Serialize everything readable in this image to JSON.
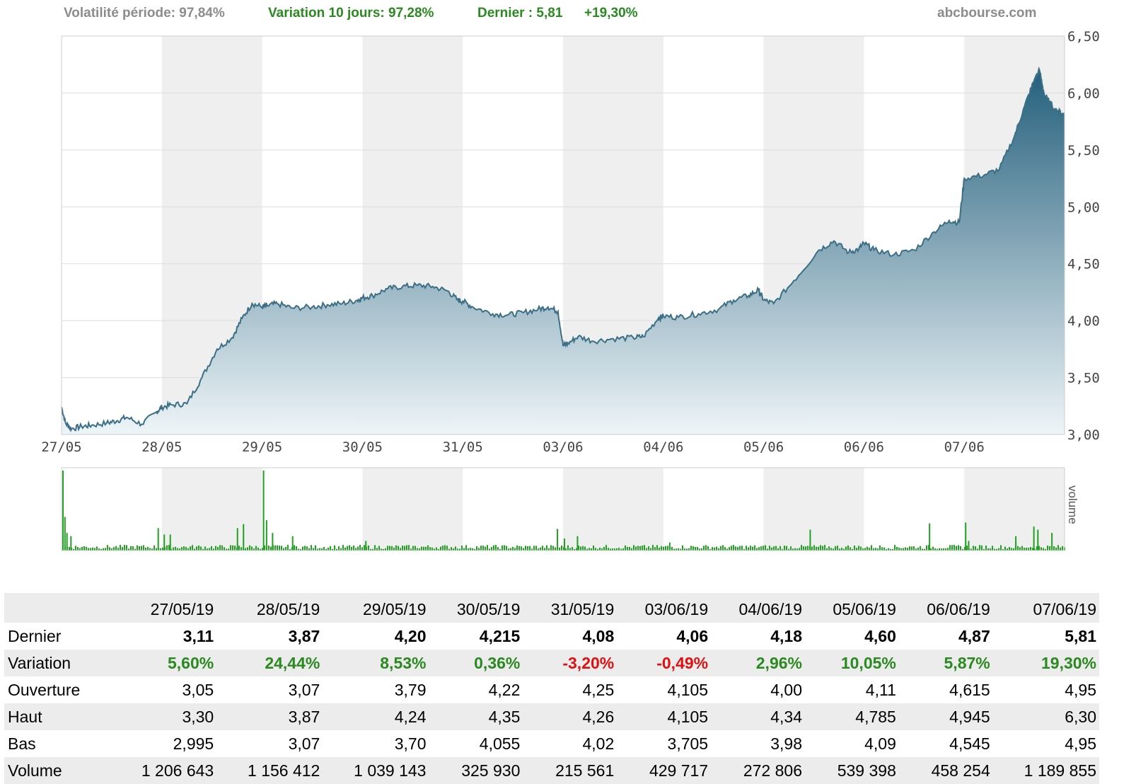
{
  "header": {
    "volatility": "Volatilité période: 97,84%",
    "variation10": "Variation 10 jours: 97,28%",
    "last": "Dernier : 5,81",
    "change": "+19,30%",
    "site": "abcbourse.com"
  },
  "colors": {
    "accent_green": "#2a8a1f",
    "header_gray": "#8c8c8c",
    "negative_red": "#e01010",
    "line": "#3b6f86",
    "volume_bar": "#22a022",
    "shade_band": "#efefef"
  },
  "chart_data": [
    {
      "type": "area",
      "title": "",
      "x_ticks": [
        "27/05",
        "28/05",
        "29/05",
        "30/05",
        "31/05",
        "03/06",
        "04/06",
        "05/06",
        "06/06",
        "07/06"
      ],
      "y_ticks": [
        "3,00",
        "3,50",
        "4,00",
        "4,50",
        "5,00",
        "5,50",
        "6,00",
        "6,50"
      ],
      "ylim": [
        3.0,
        6.5
      ],
      "grid": true,
      "series": [
        {
          "x": [
            0.0,
            0.04,
            0.1,
            0.2,
            0.3,
            0.45,
            0.55,
            0.65,
            0.8,
            0.95,
            1.0,
            1.1,
            1.25,
            1.4,
            1.55,
            1.7,
            1.8,
            1.9,
            2.0,
            2.05,
            2.15,
            2.3,
            2.5,
            2.65,
            2.8,
            2.95,
            3.0,
            3.1,
            3.25,
            3.4,
            3.55,
            3.7,
            3.85,
            3.95,
            4.0,
            4.1,
            4.3,
            4.45,
            4.6,
            4.75,
            4.85,
            4.95,
            5.0,
            5.05,
            5.15,
            5.3,
            5.5,
            5.7,
            5.8,
            5.95,
            6.0,
            6.15,
            6.35,
            6.55,
            6.7,
            6.85,
            6.95,
            7.0,
            7.1,
            7.3,
            7.55,
            7.7,
            7.85,
            7.95,
            8.0,
            8.1,
            8.3,
            8.5,
            8.7,
            8.85,
            8.95,
            9.0,
            9.2,
            9.35,
            9.5,
            9.6,
            9.7,
            9.75,
            9.8,
            9.9,
            9.98
          ],
          "values": [
            3.24,
            3.1,
            3.05,
            3.07,
            3.08,
            3.1,
            3.12,
            3.15,
            3.09,
            3.2,
            3.24,
            3.26,
            3.27,
            3.5,
            3.75,
            3.85,
            4.02,
            4.15,
            4.12,
            4.13,
            4.15,
            4.11,
            4.12,
            4.14,
            4.15,
            4.18,
            4.2,
            4.22,
            4.28,
            4.3,
            4.31,
            4.3,
            4.26,
            4.18,
            4.17,
            4.12,
            4.06,
            4.05,
            4.07,
            4.1,
            4.12,
            4.08,
            3.78,
            3.8,
            3.86,
            3.82,
            3.84,
            3.85,
            3.86,
            4.02,
            4.04,
            4.03,
            4.06,
            4.1,
            4.18,
            4.22,
            4.27,
            4.18,
            4.15,
            4.35,
            4.62,
            4.7,
            4.6,
            4.63,
            4.68,
            4.62,
            4.58,
            4.62,
            4.78,
            4.88,
            4.86,
            5.25,
            5.28,
            5.33,
            5.62,
            5.88,
            6.12,
            6.2,
            5.98,
            5.86,
            5.82
          ]
        }
      ]
    },
    {
      "type": "bar",
      "ylabel": "volume",
      "spike_positions": [
        0.0,
        0.02,
        0.04,
        0.08,
        0.95,
        1.01,
        1.07,
        1.74,
        1.8,
        2.0,
        2.03,
        2.09,
        2.29,
        3.02,
        4.93,
        5.0,
        5.13,
        6.05,
        7.45,
        8.64,
        9.0,
        9.03,
        9.5,
        9.68,
        9.72,
        9.86
      ],
      "spike_heights": [
        1.0,
        0.42,
        0.22,
        0.18,
        0.28,
        0.2,
        0.2,
        0.28,
        0.33,
        1.0,
        0.38,
        0.22,
        0.18,
        0.12,
        0.27,
        0.15,
        0.18,
        0.1,
        0.26,
        0.34,
        0.35,
        0.12,
        0.18,
        0.3,
        0.26,
        0.22
      ]
    }
  ],
  "table": {
    "dates": [
      "27/05/19",
      "28/05/19",
      "29/05/19",
      "30/05/19",
      "31/05/19",
      "03/06/19",
      "04/06/19",
      "05/06/19",
      "06/06/19",
      "07/06/19"
    ],
    "rows": [
      {
        "label": "Dernier",
        "style": "bold",
        "values": [
          "3,11",
          "3,87",
          "4,20",
          "4,215",
          "4,08",
          "4,06",
          "4,18",
          "4,60",
          "4,87",
          "5,81"
        ]
      },
      {
        "label": "Variation",
        "style": "variation",
        "values": [
          "5,60%",
          "24,44%",
          "8,53%",
          "0,36%",
          "-3,20%",
          "-0,49%",
          "2,96%",
          "10,05%",
          "5,87%",
          "19,30%"
        ]
      },
      {
        "label": "Ouverture",
        "style": "normal",
        "values": [
          "3,05",
          "3,07",
          "3,79",
          "4,22",
          "4,25",
          "4,105",
          "4,00",
          "4,11",
          "4,615",
          "4,95"
        ]
      },
      {
        "label": "Haut",
        "style": "normal",
        "values": [
          "3,30",
          "3,87",
          "4,24",
          "4,35",
          "4,26",
          "4,105",
          "4,34",
          "4,785",
          "4,945",
          "6,30"
        ]
      },
      {
        "label": "Bas",
        "style": "normal",
        "values": [
          "2,995",
          "3,07",
          "3,70",
          "4,055",
          "4,02",
          "3,705",
          "3,98",
          "4,09",
          "4,545",
          "4,95"
        ]
      },
      {
        "label": "Volume",
        "style": "normal",
        "values": [
          "1 206 643",
          "1 156 412",
          "1 039 143",
          "325 930",
          "215 561",
          "429 717",
          "272 806",
          "539 398",
          "458 254",
          "1 189 855"
        ]
      }
    ]
  }
}
